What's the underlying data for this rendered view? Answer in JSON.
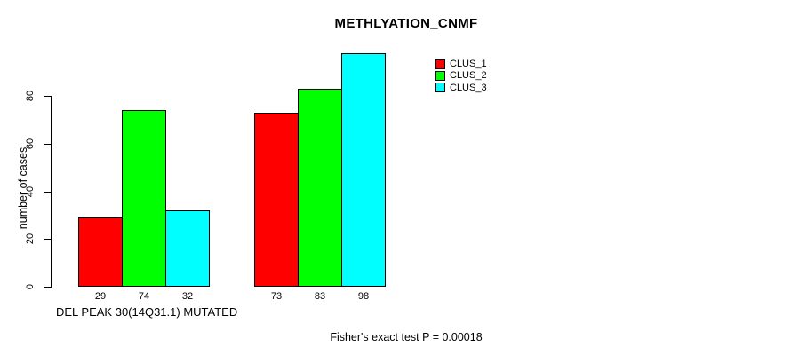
{
  "chart_data": {
    "type": "bar",
    "title": "METHLYATION_CNMF",
    "ylabel": "number of cases",
    "xlabel": "DEL PEAK 30(14Q31.1) MUTATED",
    "footer": "Fisher's exact test P = 0.00018",
    "series": [
      {
        "name": "CLUS_1",
        "color": "#ff0000",
        "values": [
          29,
          73
        ]
      },
      {
        "name": "CLUS_2",
        "color": "#00ff00",
        "values": [
          74,
          83
        ]
      },
      {
        "name": "CLUS_3",
        "color": "#00ffff",
        "values": [
          32,
          98
        ]
      }
    ],
    "yticks": [
      0,
      20,
      40,
      60,
      80
    ],
    "ylim": [
      0,
      100
    ],
    "grid": false,
    "legend_position": "top-right",
    "bar_border_color": "#000000",
    "background": "#ffffff",
    "show_value_labels": true
  }
}
